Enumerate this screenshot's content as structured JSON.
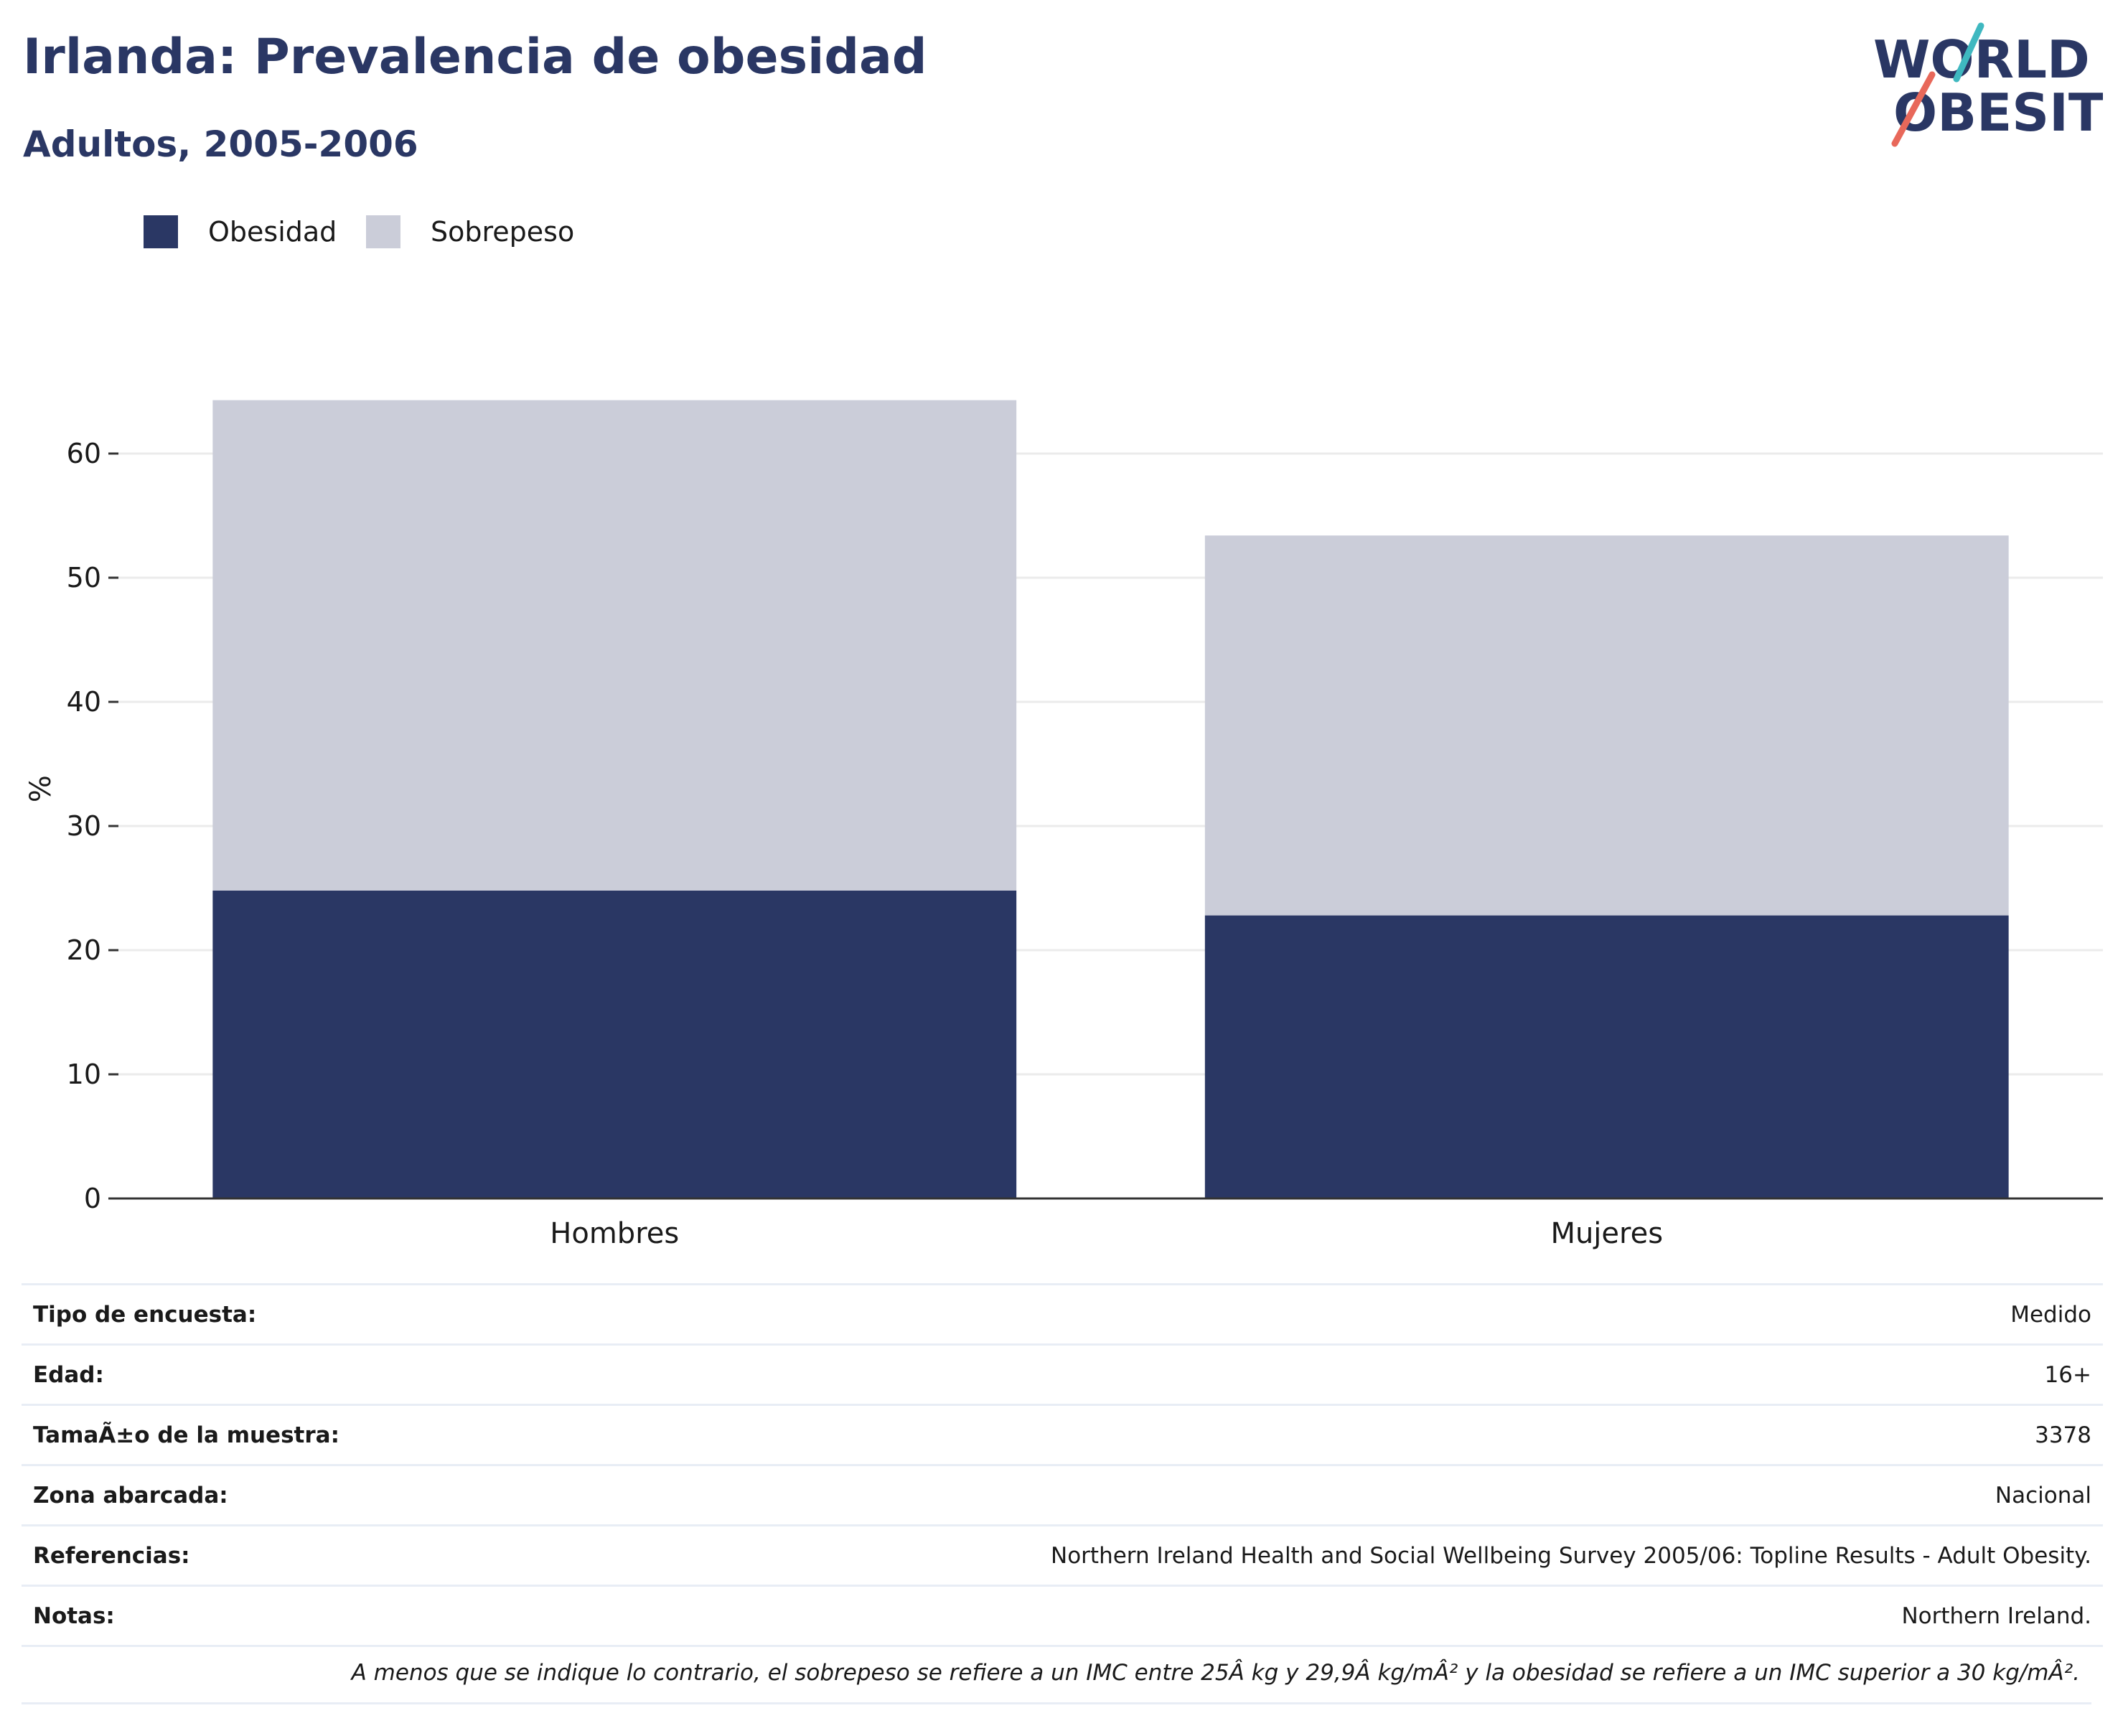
{
  "header": {
    "title": "Irlanda: Prevalencia de obesidad",
    "subtitle": "Adultos, 2005-2006"
  },
  "logo": {
    "line1": "WORLD",
    "line2": "OBESITY"
  },
  "colors": {
    "obesidad": "#2a3764",
    "sobrepeso": "#cbcdd9",
    "grid": "#ebebeb",
    "axis": "#333333",
    "logo_teal": "#3fb8c0",
    "logo_coral": "#e8685a"
  },
  "chart_data": {
    "type": "bar",
    "stacked": true,
    "categories": [
      "Hombres",
      "Mujeres"
    ],
    "series": [
      {
        "name": "Obesidad",
        "values": [
          24.8,
          22.8
        ]
      },
      {
        "name": "Sobrepeso",
        "values": [
          39.5,
          30.6
        ]
      }
    ],
    "ylabel": "%",
    "ylim": [
      0,
      66
    ],
    "yticks": [
      0,
      10,
      20,
      30,
      40,
      50,
      60
    ],
    "grid": true,
    "legend_position": "top-left"
  },
  "meta": [
    {
      "key": "Tipo de encuesta:",
      "value": "Medido"
    },
    {
      "key": "Edad:",
      "value": "16+"
    },
    {
      "key": "TamaÃ±o de la muestra:",
      "value": "3378"
    },
    {
      "key": "Zona abarcada:",
      "value": "Nacional"
    },
    {
      "key": "Referencias:",
      "value": "Northern Ireland Health and Social Wellbeing Survey 2005/06: Topline Results - Adult Obesity."
    },
    {
      "key": "Notas:",
      "value": "Northern Ireland."
    }
  ],
  "footnote": "A menos que se indique lo contrario, el sobrepeso se refiere a un IMC entre 25Â kg y 29,9Â kg/mÂ² y la obesidad se refiere a un IMC superior a 30 kg/mÂ²."
}
